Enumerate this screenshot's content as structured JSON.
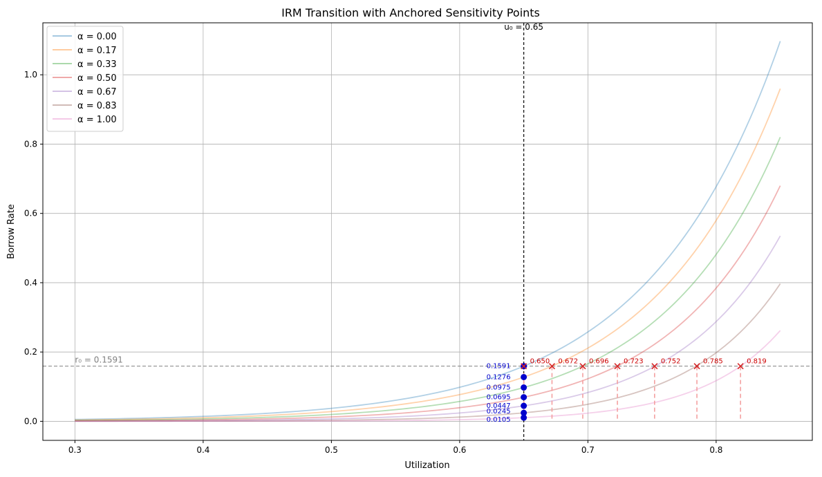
{
  "chart_data": {
    "type": "line",
    "title": "IRM Transition with Anchored Sensitivity Points",
    "xlabel": "Utilization",
    "ylabel": "Borrow Rate",
    "xlim": [
      0.275,
      0.875
    ],
    "ylim": [
      -0.055,
      1.15
    ],
    "xticks": [
      0.3,
      0.4,
      0.5,
      0.6,
      0.7,
      0.8
    ],
    "xtick_labels": [
      "0.3",
      "0.4",
      "0.5",
      "0.6",
      "0.7",
      "0.8"
    ],
    "yticks": [
      0.0,
      0.2,
      0.4,
      0.6,
      0.8,
      1.0
    ],
    "ytick_labels": [
      "0.0",
      "0.2",
      "0.4",
      "0.6",
      "0.8",
      "1.0"
    ],
    "grid": true,
    "legend_position": "upper-left",
    "series": [
      {
        "name": "α = 0.00",
        "color": "#1f77b4",
        "rate_at_anchor": 0.1591,
        "rate_at_end": 1.097
      },
      {
        "name": "α = 0.17",
        "color": "#ff7f0e",
        "rate_at_anchor": 0.1276,
        "rate_at_end": 0.96
      },
      {
        "name": "α = 0.33",
        "color": "#2ca02c",
        "rate_at_anchor": 0.0975,
        "rate_at_end": 0.82
      },
      {
        "name": "α = 0.50",
        "color": "#d62728",
        "rate_at_anchor": 0.0695,
        "rate_at_end": 0.68
      },
      {
        "name": "α = 0.67",
        "color": "#9467bd",
        "rate_at_anchor": 0.0447,
        "rate_at_end": 0.535
      },
      {
        "name": "α = 0.83",
        "color": "#8c564b",
        "rate_at_anchor": 0.0245,
        "rate_at_end": 0.397
      },
      {
        "name": "α = 1.00",
        "color": "#e377c2",
        "rate_at_anchor": 0.0105,
        "rate_at_end": 0.262
      }
    ],
    "curve_x_range": [
      0.3,
      0.85
    ],
    "anchor_u": 0.65,
    "anchor_label": "u₀ = 0.65",
    "reference_rate": 0.1591,
    "reference_label": "r₀ = 0.1591",
    "anchor_points": [
      {
        "y": 0.1591,
        "label": "0.1591"
      },
      {
        "y": 0.1276,
        "label": "0.1276"
      },
      {
        "y": 0.0975,
        "label": "0.0975"
      },
      {
        "y": 0.0695,
        "label": "0.0695"
      },
      {
        "y": 0.0447,
        "label": "0.0447"
      },
      {
        "y": 0.0245,
        "label": "0.0245"
      },
      {
        "y": 0.0105,
        "label": "0.0105"
      }
    ],
    "equal_rate_points": [
      {
        "x": 0.65,
        "label": "0.650"
      },
      {
        "x": 0.672,
        "label": "0.672"
      },
      {
        "x": 0.696,
        "label": "0.696"
      },
      {
        "x": 0.723,
        "label": "0.723"
      },
      {
        "x": 0.752,
        "label": "0.752"
      },
      {
        "x": 0.785,
        "label": "0.785"
      },
      {
        "x": 0.819,
        "label": "0.819"
      }
    ],
    "colors": {
      "anchor_point": "#0000cc",
      "equal_rate_marker": "#d62728",
      "equal_rate_drop": "#f4a0a0",
      "reference_line": "#808080",
      "anchor_line": "#000000"
    }
  }
}
